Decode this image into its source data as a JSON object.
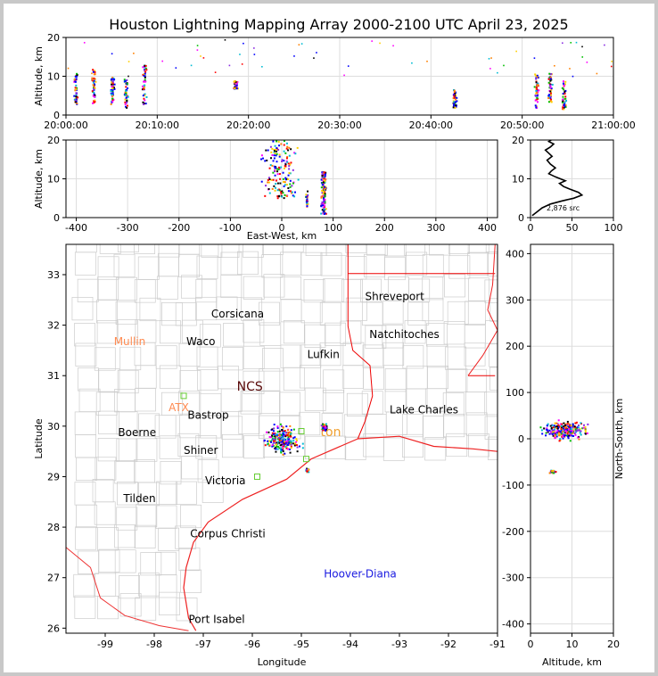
{
  "title": "Houston Lightning Mapping Array 2000-2100 UTC April 23, 2025",
  "chart_data": [
    {
      "id": "time_altitude",
      "type": "scatter",
      "ylabel": "Altitude, km",
      "xlabel": "",
      "xlim_minutes": [
        0,
        60
      ],
      "ylim": [
        0,
        20
      ],
      "xtick_labels": [
        "20:00:00",
        "20:10:00",
        "20:20:00",
        "20:30:00",
        "20:40:00",
        "20:50:00",
        "21:00:00"
      ],
      "yticks": [
        0,
        10,
        20
      ],
      "grid": true,
      "bursts": [
        {
          "t": 1.0,
          "alt_min": 3,
          "alt_max": 11
        },
        {
          "t": 3.0,
          "alt_min": 3,
          "alt_max": 12
        },
        {
          "t": 5.0,
          "alt_min": 3,
          "alt_max": 10
        },
        {
          "t": 6.5,
          "alt_min": 2,
          "alt_max": 10
        },
        {
          "t": 8.5,
          "alt_min": 3,
          "alt_max": 13
        },
        {
          "t": 18.5,
          "alt_min": 7,
          "alt_max": 9
        },
        {
          "t": 42.5,
          "alt_min": 2,
          "alt_max": 7
        },
        {
          "t": 51.5,
          "alt_min": 2,
          "alt_max": 11
        },
        {
          "t": 53.0,
          "alt_min": 3,
          "alt_max": 11
        },
        {
          "t": 54.5,
          "alt_min": 1,
          "alt_max": 9
        }
      ]
    },
    {
      "id": "ew_altitude",
      "type": "scatter",
      "xlabel": "East-West, km",
      "ylabel": "Altitude, km",
      "xlim": [
        -420,
        420
      ],
      "ylim": [
        0,
        20
      ],
      "xticks": [
        -400,
        -300,
        -200,
        -100,
        0,
        100,
        200,
        300,
        400
      ],
      "yticks": [
        0,
        10,
        20
      ],
      "grid": true,
      "clusters": [
        {
          "x": -5,
          "dx": 45,
          "alt_min": 5,
          "alt_max": 20
        },
        {
          "x": 80,
          "dx": 7,
          "alt_min": 1,
          "alt_max": 12
        },
        {
          "x": 48,
          "dx": 4,
          "alt_min": 3,
          "alt_max": 7
        }
      ]
    },
    {
      "id": "altitude_histogram",
      "type": "line",
      "xlim": [
        0,
        100
      ],
      "ylim": [
        0,
        20
      ],
      "xticks": [
        0,
        50,
        100
      ],
      "yticks": [
        0,
        10,
        20
      ],
      "annotation": "2,876 src",
      "x": [
        2,
        8,
        14,
        24,
        38,
        52,
        62,
        58,
        48,
        40,
        35,
        42,
        30,
        22,
        25,
        30,
        24,
        20,
        26,
        22,
        18,
        24,
        28,
        22,
        25
      ],
      "y": [
        0.5,
        1.5,
        2.5,
        3.5,
        4.3,
        5.0,
        5.8,
        6.5,
        7.3,
        8.0,
        8.8,
        9.5,
        10.5,
        11.3,
        12.0,
        12.8,
        13.8,
        14.8,
        15.8,
        16.6,
        17.4,
        18.2,
        19.0,
        19.6,
        20.0
      ]
    },
    {
      "id": "plan_view",
      "type": "scatter",
      "xlabel": "Longitude",
      "ylabel": "Latitude",
      "xlim": [
        -99.8,
        -91
      ],
      "ylim": [
        25.9,
        33.6
      ],
      "xticks": [
        -99,
        -98,
        -97,
        -96,
        -95,
        -94,
        -93,
        -92,
        -91
      ],
      "yticks": [
        26,
        27,
        28,
        29,
        30,
        31,
        32,
        33
      ],
      "clusters": [
        {
          "lon": -95.4,
          "lat": 29.75,
          "dlon": 0.45,
          "dlat": 0.35
        },
        {
          "lon": -94.55,
          "lat": 30.0,
          "dlon": 0.08,
          "dlat": 0.1
        },
        {
          "lon": -94.9,
          "lat": 29.15,
          "dlon": 0.05,
          "dlat": 0.05
        }
      ],
      "state_border": [
        [
          -94.05,
          33.6
        ],
        [
          -94.05,
          31.98
        ],
        [
          -93.95,
          31.5
        ],
        [
          -93.6,
          31.2
        ],
        [
          -93.55,
          30.6
        ],
        [
          -93.7,
          30.1
        ],
        [
          -93.85,
          29.75
        ]
      ],
      "ar_la_border": [
        [
          -94.05,
          33.02
        ],
        [
          -91.05,
          33.02
        ]
      ],
      "la_ms_border": [
        [
          -91.05,
          31.0
        ],
        [
          -91.6,
          31.0
        ]
      ],
      "coast": [
        [
          -93.85,
          29.75
        ],
        [
          -94.8,
          29.35
        ],
        [
          -95.3,
          28.95
        ],
        [
          -96.2,
          28.55
        ],
        [
          -96.9,
          28.1
        ],
        [
          -97.2,
          27.7
        ],
        [
          -97.35,
          27.2
        ],
        [
          -97.4,
          26.8
        ],
        [
          -97.3,
          26.2
        ],
        [
          -97.15,
          25.95
        ]
      ],
      "mexico_border": [
        [
          -99.8,
          27.6
        ],
        [
          -99.3,
          27.2
        ],
        [
          -99.1,
          26.6
        ],
        [
          -98.6,
          26.25
        ],
        [
          -97.9,
          26.05
        ],
        [
          -97.3,
          25.95
        ]
      ],
      "stations": [
        {
          "lon": -97.4,
          "lat": 30.6
        },
        {
          "lon": -95.9,
          "lat": 29.0
        },
        {
          "lon": -94.9,
          "lat": 29.35
        },
        {
          "lon": -95.0,
          "lat": 29.9
        }
      ],
      "labels": [
        {
          "text": "Shreveport",
          "lon": -93.7,
          "lat": 32.5,
          "color": "#000000",
          "anchor": "start"
        },
        {
          "text": "Corsicana",
          "lon": -96.3,
          "lat": 32.15,
          "color": "#000000",
          "anchor": "middle"
        },
        {
          "text": "Natchitoches",
          "lon": -92.9,
          "lat": 31.75,
          "color": "#000000",
          "anchor": "middle"
        },
        {
          "text": "Mullin",
          "lon": -98.5,
          "lat": 31.6,
          "color": "#ff8a50",
          "anchor": "middle"
        },
        {
          "text": "Waco",
          "lon": -97.05,
          "lat": 31.6,
          "color": "#000000",
          "anchor": "middle"
        },
        {
          "text": "Lufkin",
          "lon": -94.55,
          "lat": 31.35,
          "color": "#000000",
          "anchor": "middle"
        },
        {
          "text": "NCS",
          "lon": -96.05,
          "lat": 30.7,
          "color": "#5a0a0a",
          "anchor": "middle"
        },
        {
          "text": "ATX",
          "lon": -97.5,
          "lat": 30.3,
          "color": "#ff8a50",
          "anchor": "middle"
        },
        {
          "text": "Bastrop",
          "lon": -96.9,
          "lat": 30.15,
          "color": "#000000",
          "anchor": "middle"
        },
        {
          "text": "Lake Charles",
          "lon": -92.5,
          "lat": 30.25,
          "color": "#000000",
          "anchor": "middle"
        },
        {
          "text": "Boerne",
          "lon": -98.35,
          "lat": 29.8,
          "color": "#000000",
          "anchor": "middle"
        },
        {
          "text": "ton",
          "lon": -94.4,
          "lat": 29.8,
          "color": "#f0a030",
          "anchor": "middle"
        },
        {
          "text": "Shiner",
          "lon": -97.05,
          "lat": 29.45,
          "color": "#000000",
          "anchor": "middle"
        },
        {
          "text": "Victoria",
          "lon": -96.55,
          "lat": 28.85,
          "color": "#000000",
          "anchor": "middle"
        },
        {
          "text": "Tilden",
          "lon": -98.3,
          "lat": 28.5,
          "color": "#000000",
          "anchor": "middle"
        },
        {
          "text": "Corpus Christi",
          "lon": -96.5,
          "lat": 27.8,
          "color": "#000000",
          "anchor": "middle"
        },
        {
          "text": "Hoover-Diana",
          "lon": -93.8,
          "lat": 27.0,
          "color": "#1a1ae0",
          "anchor": "middle"
        },
        {
          "text": "Port Isabel",
          "lon": -97.3,
          "lat": 26.1,
          "color": "#000000",
          "anchor": "start"
        }
      ]
    },
    {
      "id": "ns_altitude",
      "type": "scatter",
      "xlabel": "Altitude, km",
      "ylabel": "North-South, km",
      "xlim": [
        0,
        20
      ],
      "ylim": [
        -420,
        420
      ],
      "xticks": [
        0,
        10,
        20
      ],
      "yticks": [
        -400,
        -300,
        -200,
        -100,
        0,
        100,
        200,
        300,
        400
      ],
      "grid": true,
      "clusters": [
        {
          "alt": 8,
          "dalt": 7,
          "y": 20,
          "dy": 25
        },
        {
          "alt": 5,
          "dalt": 1.5,
          "y": -70,
          "dy": 6
        }
      ]
    }
  ]
}
